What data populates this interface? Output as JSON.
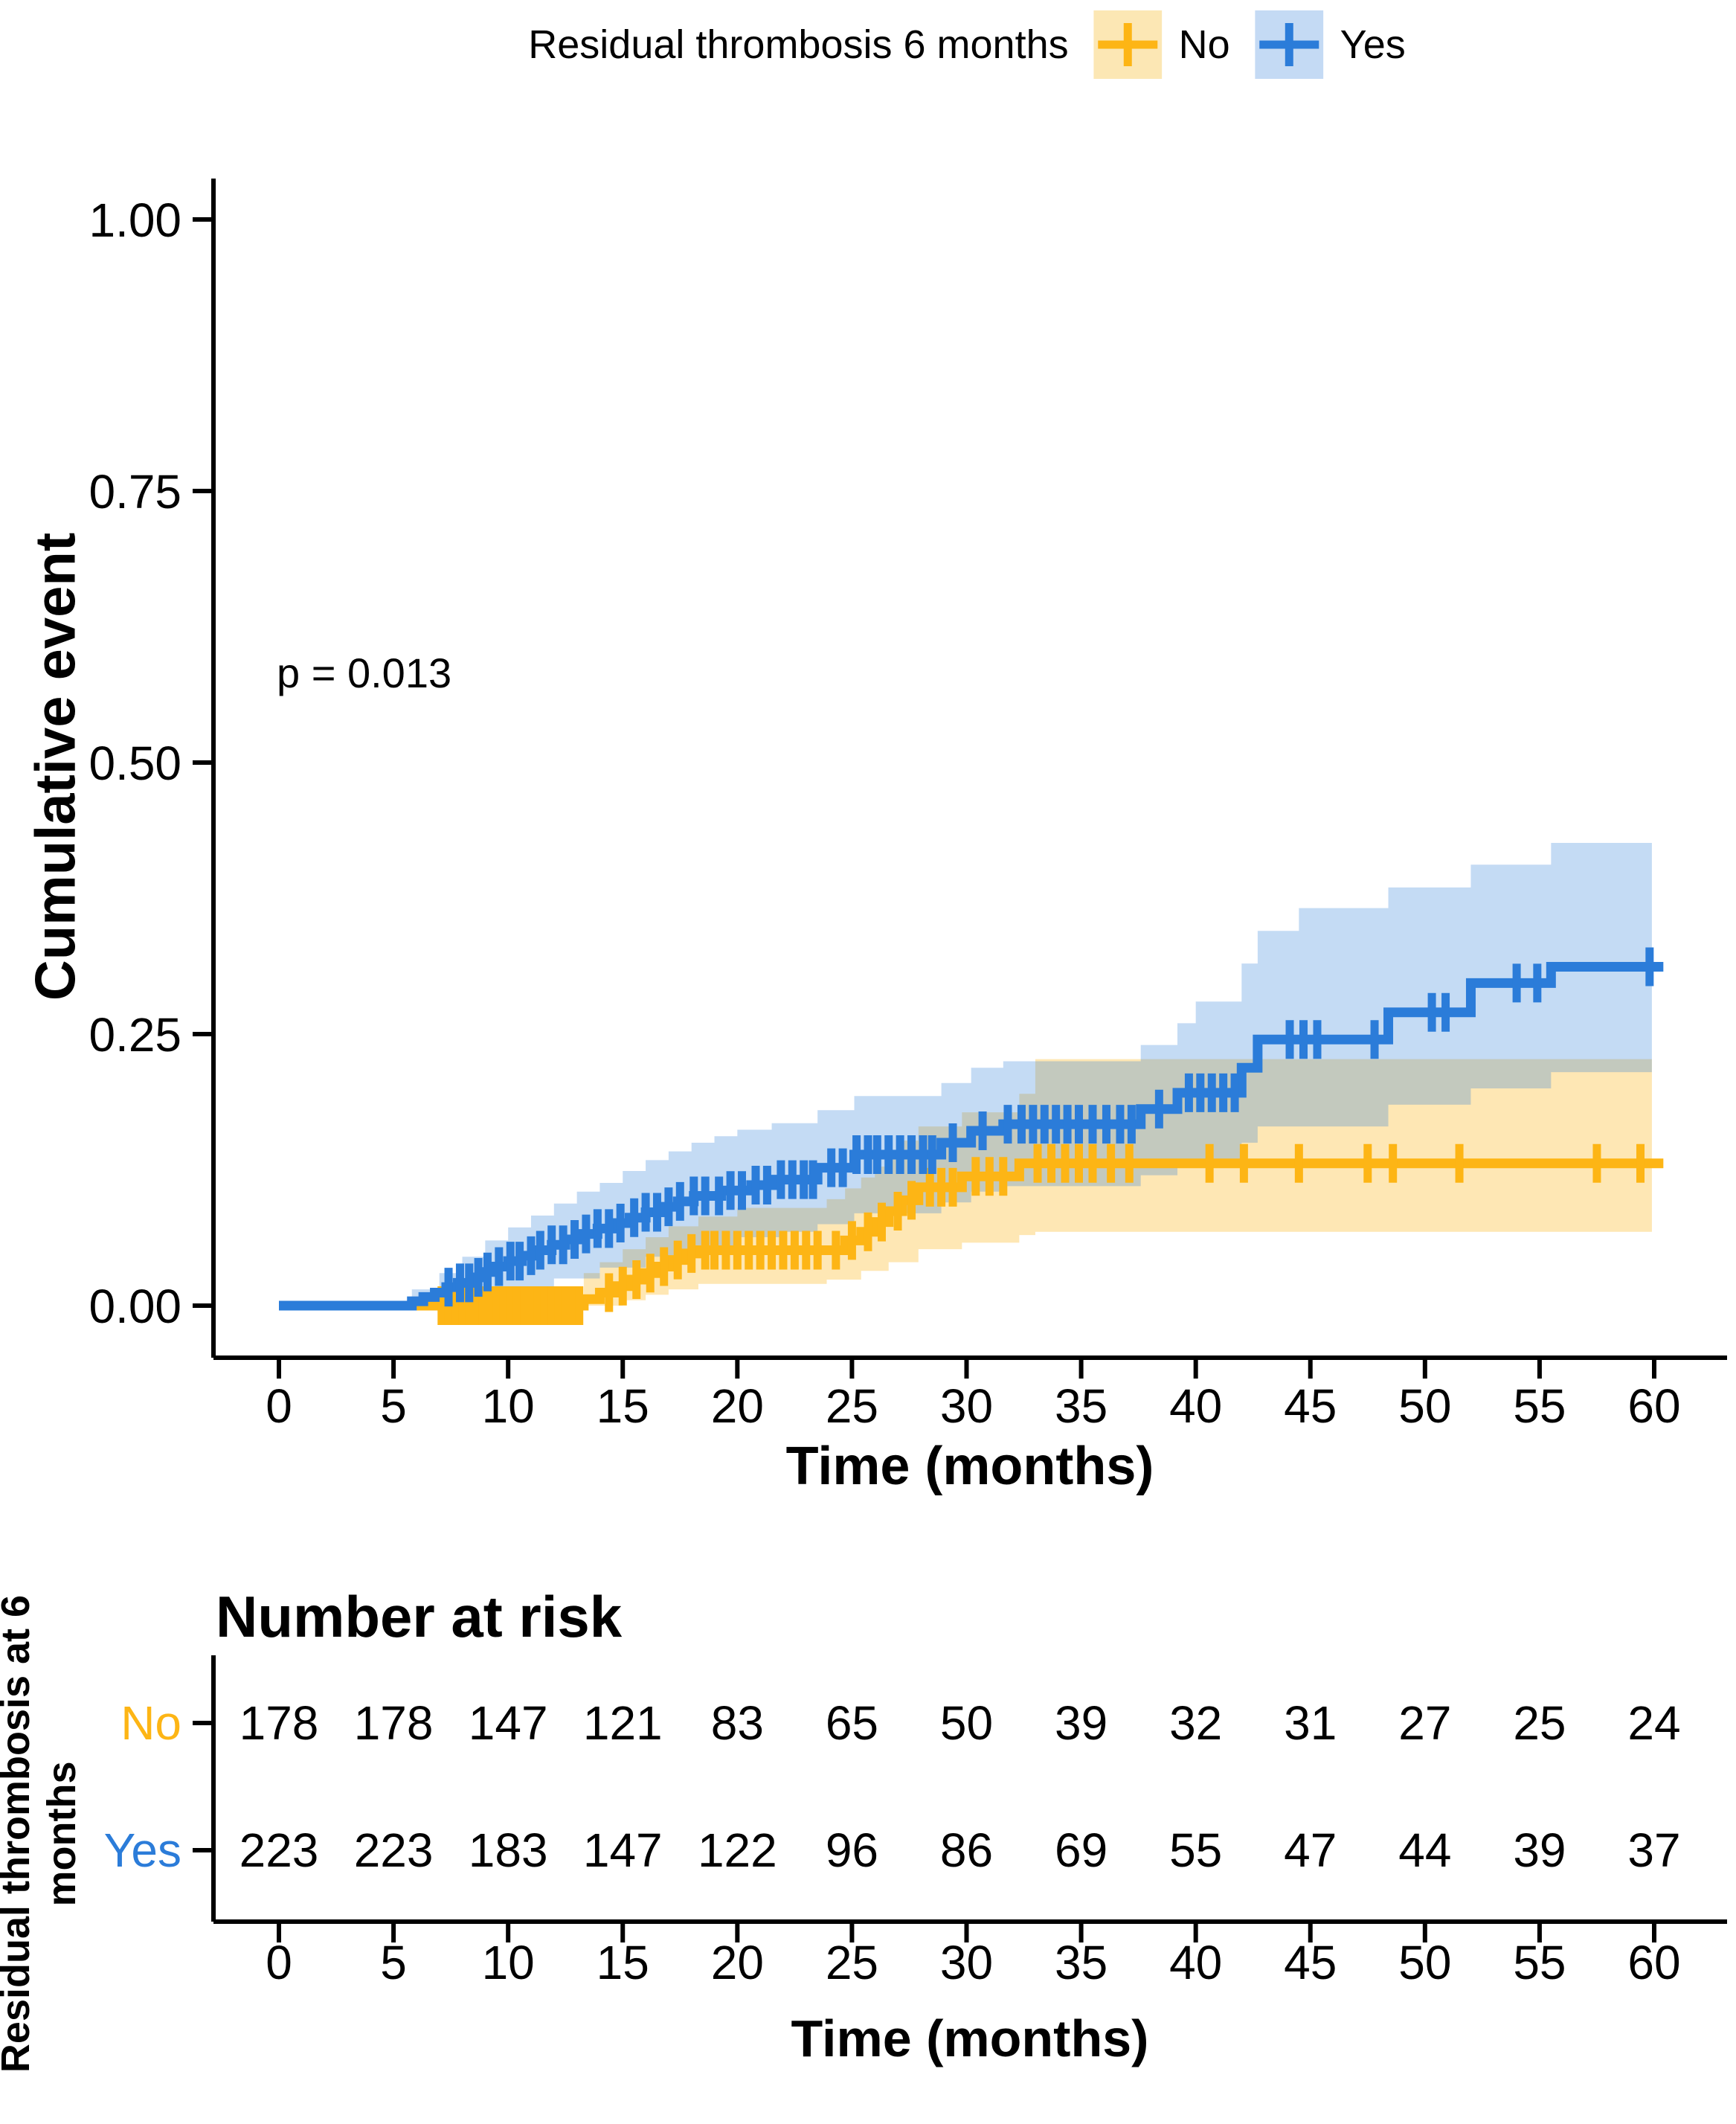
{
  "legend": {
    "title": "Residual thrombosis 6 months",
    "items": [
      {
        "label": "No",
        "line_color": "#FDB515",
        "band_color": "#FCE7B4"
      },
      {
        "label": "Yes",
        "line_color": "#2B7CD9",
        "band_color": "#C4DAF4"
      }
    ]
  },
  "annotation": {
    "p_value": "p = 0.013"
  },
  "axes": {
    "y_label": "Cumulative event",
    "x_label": "Time (months)",
    "y_tick_labels": [
      "0.00",
      "0.25",
      "0.50",
      "0.75",
      "1.00"
    ],
    "x_tick_labels": [
      "0",
      "5",
      "10",
      "15",
      "20",
      "25",
      "30",
      "35",
      "40",
      "45",
      "50",
      "55",
      "60"
    ]
  },
  "risk_table": {
    "title": "Number at risk",
    "axis_label": "Residual thrombosis at 6 months",
    "x_label": "Time (months)",
    "times": [
      0,
      5,
      10,
      15,
      20,
      25,
      30,
      35,
      40,
      45,
      50,
      55,
      60
    ],
    "x_tick_labels": [
      "0",
      "5",
      "10",
      "15",
      "20",
      "25",
      "30",
      "35",
      "40",
      "45",
      "50",
      "55",
      "60"
    ],
    "rows": [
      {
        "label": "No",
        "color": "#FDB515",
        "values": [
          178,
          178,
          147,
          121,
          83,
          65,
          50,
          39,
          32,
          31,
          27,
          25,
          24
        ]
      },
      {
        "label": "Yes",
        "color": "#2B7CD9",
        "values": [
          223,
          223,
          183,
          147,
          122,
          96,
          86,
          69,
          55,
          47,
          44,
          39,
          37
        ]
      }
    ]
  },
  "chart_data": {
    "type": "line",
    "variant": "kaplan-meier-cumulative-event-step-curves-with-ci-bands",
    "title": "",
    "xlabel": "Time (months)",
    "ylabel": "Cumulative event",
    "xlim": [
      0,
      62
    ],
    "ylim": [
      0,
      1.0
    ],
    "x_ticks": [
      0,
      5,
      10,
      15,
      20,
      25,
      30,
      35,
      40,
      45,
      50,
      55,
      60
    ],
    "y_ticks": [
      0,
      0.25,
      0.5,
      0.75,
      1.0
    ],
    "grid": false,
    "legend_position": "top",
    "legend_title": "Residual thrombosis 6 months",
    "p_value": "p = 0.013",
    "band_end_time": 59.9,
    "series": [
      {
        "name": "No",
        "color": "#FDB515",
        "band_rgba": "rgba(253,181,21,0.32)",
        "steps": [
          [
            0,
            0
          ],
          [
            6.9,
            0.0
          ],
          [
            13.3,
            0.006
          ],
          [
            14.0,
            0.012
          ],
          [
            14.7,
            0.018
          ],
          [
            15.3,
            0.024
          ],
          [
            15.9,
            0.03
          ],
          [
            16.5,
            0.036
          ],
          [
            17.1,
            0.042
          ],
          [
            17.7,
            0.048
          ],
          [
            18.3,
            0.051
          ],
          [
            23.9,
            0.051
          ],
          [
            24.7,
            0.06
          ],
          [
            25.4,
            0.068
          ],
          [
            26.0,
            0.077
          ],
          [
            26.6,
            0.087
          ],
          [
            27.2,
            0.097
          ],
          [
            27.9,
            0.109
          ],
          [
            29.8,
            0.119
          ],
          [
            32.3,
            0.131
          ],
          [
            60.4,
            0.131
          ]
        ],
        "censor_times": [
          7.1,
          7.4,
          7.7,
          8.0,
          8.3,
          8.6,
          8.9,
          9.2,
          9.5,
          9.8,
          10.1,
          10.4,
          10.7,
          11.0,
          11.3,
          11.6,
          11.9,
          12.2,
          12.5,
          12.8,
          13.1,
          14.4,
          15.0,
          15.6,
          16.2,
          16.8,
          17.4,
          18.0,
          18.6,
          19.0,
          19.5,
          20.0,
          20.5,
          21.0,
          21.5,
          22.0,
          22.5,
          23.0,
          23.5,
          24.3,
          25.0,
          25.7,
          26.3,
          27.0,
          27.6,
          28.4,
          28.9,
          29.4,
          30.4,
          31.0,
          31.6,
          33.1,
          33.7,
          34.3,
          34.9,
          35.5,
          36.3,
          37.1,
          40.6,
          42.1,
          44.5,
          47.5,
          48.6,
          51.5,
          57.5,
          59.4
        ],
        "ci_upper": [
          [
            6.9,
            0.01
          ],
          [
            13.3,
            0.03
          ],
          [
            14.0,
            0.04
          ],
          [
            15.0,
            0.052
          ],
          [
            16.0,
            0.063
          ],
          [
            17.0,
            0.073
          ],
          [
            18.3,
            0.082
          ],
          [
            20.0,
            0.09
          ],
          [
            23.9,
            0.098
          ],
          [
            24.7,
            0.108
          ],
          [
            25.4,
            0.118
          ],
          [
            26.0,
            0.128
          ],
          [
            26.6,
            0.14
          ],
          [
            27.2,
            0.152
          ],
          [
            27.9,
            0.165
          ],
          [
            29.8,
            0.178
          ],
          [
            32.3,
            0.195
          ],
          [
            33.0,
            0.227
          ],
          [
            59.9,
            0.227
          ]
        ],
        "ci_lower": [
          [
            6.9,
            0.0
          ],
          [
            14.0,
            0.0
          ],
          [
            15.0,
            0.005
          ],
          [
            16.0,
            0.01
          ],
          [
            17.0,
            0.015
          ],
          [
            18.3,
            0.02
          ],
          [
            23.9,
            0.024
          ],
          [
            25.4,
            0.032
          ],
          [
            26.6,
            0.04
          ],
          [
            27.9,
            0.052
          ],
          [
            29.8,
            0.058
          ],
          [
            32.3,
            0.065
          ],
          [
            33.0,
            0.068
          ],
          [
            59.9,
            0.071
          ]
        ]
      },
      {
        "name": "Yes",
        "color": "#2B7CD9",
        "band_rgba": "rgba(43,124,217,0.28)",
        "steps": [
          [
            0,
            0
          ],
          [
            5.8,
            0.004
          ],
          [
            6.3,
            0.008
          ],
          [
            6.8,
            0.012
          ],
          [
            7.3,
            0.017
          ],
          [
            7.8,
            0.021
          ],
          [
            8.4,
            0.026
          ],
          [
            8.9,
            0.031
          ],
          [
            9.4,
            0.036
          ],
          [
            10.0,
            0.041
          ],
          [
            10.6,
            0.046
          ],
          [
            11.2,
            0.051
          ],
          [
            11.9,
            0.056
          ],
          [
            12.5,
            0.061
          ],
          [
            13.2,
            0.066
          ],
          [
            13.9,
            0.071
          ],
          [
            14.6,
            0.076
          ],
          [
            15.3,
            0.081
          ],
          [
            16.0,
            0.086
          ],
          [
            16.7,
            0.091
          ],
          [
            17.4,
            0.096
          ],
          [
            18.1,
            0.101
          ],
          [
            19.3,
            0.106
          ],
          [
            20.6,
            0.111
          ],
          [
            21.6,
            0.116
          ],
          [
            23.5,
            0.127
          ],
          [
            25.1,
            0.139
          ],
          [
            28.9,
            0.15
          ],
          [
            30.2,
            0.161
          ],
          [
            31.6,
            0.167
          ],
          [
            37.6,
            0.181
          ],
          [
            39.2,
            0.196
          ],
          [
            42.0,
            0.219
          ],
          [
            42.7,
            0.245
          ],
          [
            48.4,
            0.27
          ],
          [
            52.0,
            0.297
          ],
          [
            55.5,
            0.312
          ],
          [
            60.4,
            0.312
          ]
        ],
        "censor_times": [
          7.4,
          7.9,
          8.3,
          8.7,
          9.1,
          9.6,
          10.1,
          10.5,
          11.0,
          11.4,
          11.9,
          12.4,
          12.9,
          13.4,
          13.9,
          14.4,
          14.9,
          15.5,
          16.0,
          16.5,
          17.0,
          17.5,
          18.1,
          18.6,
          19.2,
          19.7,
          20.2,
          20.8,
          21.3,
          21.9,
          22.4,
          22.9,
          23.3,
          24.1,
          24.6,
          25.2,
          25.7,
          26.1,
          26.6,
          27.1,
          27.6,
          28.1,
          28.5,
          29.4,
          30.7,
          31.8,
          32.4,
          32.9,
          33.4,
          33.9,
          34.4,
          34.9,
          35.5,
          36.1,
          36.7,
          37.2,
          38.4,
          39.7,
          40.2,
          40.7,
          41.2,
          41.7,
          44.1,
          44.7,
          45.3,
          47.8,
          50.3,
          50.9,
          54.0,
          54.9,
          59.8
        ],
        "ci_upper": [
          [
            5.8,
            0.015
          ],
          [
            7.0,
            0.03
          ],
          [
            8.0,
            0.045
          ],
          [
            9.0,
            0.06
          ],
          [
            10.0,
            0.072
          ],
          [
            11.0,
            0.083
          ],
          [
            12.0,
            0.094
          ],
          [
            13.0,
            0.105
          ],
          [
            14.0,
            0.113
          ],
          [
            15.0,
            0.124
          ],
          [
            16.0,
            0.134
          ],
          [
            17.0,
            0.142
          ],
          [
            18.0,
            0.15
          ],
          [
            19.0,
            0.156
          ],
          [
            20.0,
            0.162
          ],
          [
            21.5,
            0.168
          ],
          [
            23.5,
            0.18
          ],
          [
            25.1,
            0.193
          ],
          [
            28.9,
            0.205
          ],
          [
            30.2,
            0.219
          ],
          [
            31.6,
            0.225
          ],
          [
            37.6,
            0.24
          ],
          [
            39.2,
            0.26
          ],
          [
            40.0,
            0.28
          ],
          [
            42.0,
            0.315
          ],
          [
            42.7,
            0.345
          ],
          [
            44.5,
            0.366
          ],
          [
            48.4,
            0.385
          ],
          [
            52.0,
            0.406
          ],
          [
            55.5,
            0.426
          ],
          [
            59.9,
            0.426
          ]
        ],
        "ci_lower": [
          [
            5.8,
            0.0
          ],
          [
            8.0,
            0.005
          ],
          [
            10.0,
            0.015
          ],
          [
            12.0,
            0.025
          ],
          [
            14.0,
            0.035
          ],
          [
            16.0,
            0.045
          ],
          [
            18.0,
            0.055
          ],
          [
            20.0,
            0.063
          ],
          [
            22.0,
            0.068
          ],
          [
            23.5,
            0.075
          ],
          [
            25.1,
            0.085
          ],
          [
            28.9,
            0.095
          ],
          [
            30.2,
            0.105
          ],
          [
            31.6,
            0.11
          ],
          [
            37.6,
            0.12
          ],
          [
            39.2,
            0.133
          ],
          [
            42.0,
            0.15
          ],
          [
            42.7,
            0.165
          ],
          [
            48.4,
            0.185
          ],
          [
            52.0,
            0.2
          ],
          [
            55.5,
            0.215
          ],
          [
            59.9,
            0.222
          ]
        ]
      }
    ],
    "number_at_risk": {
      "times": [
        0,
        5,
        10,
        15,
        20,
        25,
        30,
        35,
        40,
        45,
        50,
        55,
        60
      ],
      "No": [
        178,
        178,
        147,
        121,
        83,
        65,
        50,
        39,
        32,
        31,
        27,
        25,
        24
      ],
      "Yes": [
        223,
        223,
        183,
        147,
        122,
        96,
        86,
        69,
        55,
        47,
        44,
        39,
        37
      ]
    }
  }
}
